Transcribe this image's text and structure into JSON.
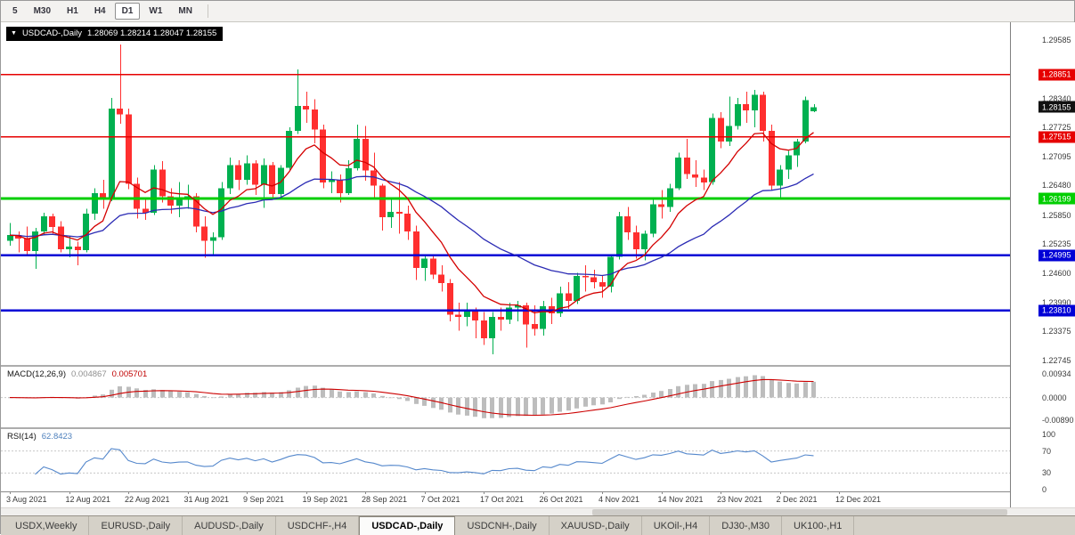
{
  "toolbar": {
    "timeframes": [
      {
        "label": "5",
        "active": false
      },
      {
        "label": "M30",
        "active": false
      },
      {
        "label": "H1",
        "active": false
      },
      {
        "label": "H4",
        "active": false
      },
      {
        "label": "D1",
        "active": true
      },
      {
        "label": "W1",
        "active": false
      },
      {
        "label": "MN",
        "active": false
      }
    ]
  },
  "chart_title": {
    "symbol": "USDCAD-,Daily",
    "ohlc": "1.28069 1.28214 1.28047 1.28155"
  },
  "price_axis": {
    "current": {
      "label": "1.28155",
      "bg": "#111111"
    }
  },
  "macd_panel": {
    "name": "MACD(12,26,9)",
    "value_main": "0.004867",
    "value_signal": "0.005701",
    "axis_labels": [
      "0.00934",
      "0.0000",
      "-0.00890"
    ]
  },
  "rsi_panel": {
    "name": "RSI(14)",
    "value": "62.8423",
    "axis_labels": [
      "100",
      "70",
      "30",
      "0"
    ],
    "guide_levels": [
      70,
      30
    ]
  },
  "date_axis": {
    "labels": [
      "3 Aug 2021",
      "12 Aug 2021",
      "22 Aug 2021",
      "31 Aug 2021",
      "9 Sep 2021",
      "19 Sep 2021",
      "28 Sep 2021",
      "7 Oct 2021",
      "17 Oct 2021",
      "26 Oct 2021",
      "4 Nov 2021",
      "14 Nov 2021",
      "23 Nov 2021",
      "2 Dec 2021",
      "12 Dec 2021"
    ]
  },
  "tabs": [
    {
      "label": "USDX,Weekly",
      "active": false
    },
    {
      "label": "EURUSD-,Daily",
      "active": false
    },
    {
      "label": "AUDUSD-,Daily",
      "active": false
    },
    {
      "label": "USDCHF-,H4",
      "active": false
    },
    {
      "label": "USDCAD-,Daily",
      "active": true
    },
    {
      "label": "USDCNH-,Daily",
      "active": false
    },
    {
      "label": "XAUUSD-,Daily",
      "active": false
    },
    {
      "label": "UKOil-,H4",
      "active": false
    },
    {
      "label": "DJ30-,M30",
      "active": false
    },
    {
      "label": "UK100-,H1",
      "active": false
    }
  ],
  "colors": {
    "candle_up": "#00b050",
    "candle_down": "#ff2f2f",
    "macd_hist": "#bdbdbd",
    "macd_signal": "#cc0000",
    "rsi_line": "#5588cc",
    "guide_dotted": "#c8c8c8"
  },
  "chart_data": {
    "type": "candlestick",
    "symbol": "USDCAD-",
    "timeframe": "Daily",
    "current_ohlc": {
      "open": 1.28069,
      "high": 1.28214,
      "low": 1.28047,
      "close": 1.28155
    },
    "y_ticks": [
      "1.29585",
      "1.28340",
      "1.27725",
      "1.27095",
      "1.26480",
      "1.25850",
      "1.25235",
      "1.24600",
      "1.23990",
      "1.23375",
      "1.22745"
    ],
    "horizontal_levels": [
      {
        "price": 1.28851,
        "label": "1.28851",
        "color": "#e60000",
        "width": 1.6
      },
      {
        "price": 1.27515,
        "label": "1.27515",
        "color": "#e60000",
        "width": 1.6
      },
      {
        "price": 1.26199,
        "label": "1.26199",
        "color": "#00ce00",
        "width": 3
      },
      {
        "price": 1.24995,
        "label": "1.24995",
        "color": "#0000d6",
        "width": 2.6
      },
      {
        "price": 1.2381,
        "label": "1.23810",
        "color": "#0000d6",
        "width": 2.6
      }
    ],
    "overlays": [
      {
        "name": "ma-fast",
        "type": "ema",
        "period": 9,
        "color": "#d40000"
      },
      {
        "name": "ma-slow",
        "type": "ema",
        "period": 30,
        "color": "#2b2bb4"
      }
    ],
    "candles": [
      [
        "2021-08-03",
        1.253,
        1.2568,
        1.252,
        1.2542
      ],
      [
        "2021-08-04",
        1.2542,
        1.255,
        1.2505,
        1.2535
      ],
      [
        "2021-08-05",
        1.2535,
        1.256,
        1.25,
        1.2508
      ],
      [
        "2021-08-06",
        1.2508,
        1.2558,
        1.247,
        1.255
      ],
      [
        "2021-08-09",
        1.255,
        1.259,
        1.2542,
        1.2582
      ],
      [
        "2021-08-10",
        1.2582,
        1.2588,
        1.2545,
        1.256
      ],
      [
        "2021-08-11",
        1.256,
        1.2572,
        1.2505,
        1.2512
      ],
      [
        "2021-08-12",
        1.2512,
        1.254,
        1.2495,
        1.2518
      ],
      [
        "2021-08-13",
        1.2518,
        1.2528,
        1.2478,
        1.251
      ],
      [
        "2021-08-16",
        1.251,
        1.2598,
        1.2505,
        1.2588
      ],
      [
        "2021-08-17",
        1.2588,
        1.2642,
        1.2575,
        1.2632
      ],
      [
        "2021-08-18",
        1.2632,
        1.266,
        1.2598,
        1.262
      ],
      [
        "2021-08-19",
        1.262,
        1.2835,
        1.2615,
        1.2812
      ],
      [
        "2021-08-20",
        1.2812,
        1.2949,
        1.278,
        1.28
      ],
      [
        "2021-08-23",
        1.28,
        1.2812,
        1.264,
        1.2652
      ],
      [
        "2021-08-24",
        1.2652,
        1.2665,
        1.2578,
        1.2598
      ],
      [
        "2021-08-25",
        1.2598,
        1.2622,
        1.2575,
        1.259
      ],
      [
        "2021-08-26",
        1.259,
        1.2692,
        1.2585,
        1.2682
      ],
      [
        "2021-08-27",
        1.2682,
        1.27,
        1.2612,
        1.2625
      ],
      [
        "2021-08-30",
        1.2625,
        1.2642,
        1.2588,
        1.2605
      ],
      [
        "2021-08-31",
        1.2605,
        1.2655,
        1.258,
        1.2622
      ],
      [
        "2021-09-01",
        1.2622,
        1.265,
        1.2598,
        1.2625
      ],
      [
        "2021-09-02",
        1.2625,
        1.2632,
        1.2548,
        1.256
      ],
      [
        "2021-09-03",
        1.256,
        1.2582,
        1.2494,
        1.253
      ],
      [
        "2021-09-06",
        1.253,
        1.2548,
        1.25,
        1.2538
      ],
      [
        "2021-09-07",
        1.2538,
        1.2655,
        1.2532,
        1.2642
      ],
      [
        "2021-09-08",
        1.2642,
        1.2708,
        1.263,
        1.2692
      ],
      [
        "2021-09-09",
        1.2692,
        1.2702,
        1.2638,
        1.266
      ],
      [
        "2021-09-10",
        1.266,
        1.2712,
        1.265,
        1.2695
      ],
      [
        "2021-09-13",
        1.2695,
        1.2702,
        1.2628,
        1.265
      ],
      [
        "2021-09-14",
        1.265,
        1.2706,
        1.26,
        1.2692
      ],
      [
        "2021-09-15",
        1.2692,
        1.2698,
        1.2618,
        1.263
      ],
      [
        "2021-09-16",
        1.263,
        1.2692,
        1.2618,
        1.2686
      ],
      [
        "2021-09-17",
        1.2686,
        1.2772,
        1.268,
        1.2765
      ],
      [
        "2021-09-20",
        1.2765,
        1.2896,
        1.2758,
        1.2818
      ],
      [
        "2021-09-21",
        1.2818,
        1.2848,
        1.2782,
        1.281
      ],
      [
        "2021-09-22",
        1.281,
        1.2832,
        1.2738,
        1.2768
      ],
      [
        "2021-09-23",
        1.2768,
        1.2778,
        1.2642,
        1.2655
      ],
      [
        "2021-09-24",
        1.2655,
        1.2678,
        1.2632,
        1.266
      ],
      [
        "2021-09-27",
        1.266,
        1.2672,
        1.2612,
        1.2632
      ],
      [
        "2021-09-28",
        1.2632,
        1.2702,
        1.2628,
        1.2685
      ],
      [
        "2021-09-29",
        1.2685,
        1.2778,
        1.268,
        1.2748
      ],
      [
        "2021-09-30",
        1.2748,
        1.2775,
        1.2658,
        1.268
      ],
      [
        "2021-10-01",
        1.268,
        1.2718,
        1.2618,
        1.2648
      ],
      [
        "2021-10-04",
        1.2648,
        1.2652,
        1.2552,
        1.258
      ],
      [
        "2021-10-05",
        1.258,
        1.2622,
        1.2558,
        1.2592
      ],
      [
        "2021-10-06",
        1.2592,
        1.2655,
        1.2545,
        1.2588
      ],
      [
        "2021-10-07",
        1.2588,
        1.2605,
        1.2532,
        1.255
      ],
      [
        "2021-10-08",
        1.255,
        1.2562,
        1.2446,
        1.2472
      ],
      [
        "2021-10-11",
        1.2472,
        1.2502,
        1.2445,
        1.2492
      ],
      [
        "2021-10-12",
        1.2492,
        1.2502,
        1.2448,
        1.2458
      ],
      [
        "2021-10-13",
        1.2458,
        1.2478,
        1.2422,
        1.244
      ],
      [
        "2021-10-14",
        1.244,
        1.2448,
        1.2358,
        1.2372
      ],
      [
        "2021-10-15",
        1.2372,
        1.2398,
        1.2338,
        1.2368
      ],
      [
        "2021-10-18",
        1.2368,
        1.2398,
        1.2348,
        1.238
      ],
      [
        "2021-10-19",
        1.238,
        1.2388,
        1.2322,
        1.236
      ],
      [
        "2021-10-20",
        1.236,
        1.2378,
        1.2308,
        1.2322
      ],
      [
        "2021-10-21",
        1.2322,
        1.2378,
        1.2288,
        1.2368
      ],
      [
        "2021-10-22",
        1.2368,
        1.2388,
        1.2338,
        1.2362
      ],
      [
        "2021-10-25",
        1.2362,
        1.2398,
        1.2352,
        1.2388
      ],
      [
        "2021-10-26",
        1.2388,
        1.2402,
        1.2358,
        1.2392
      ],
      [
        "2021-10-27",
        1.2392,
        1.2398,
        1.2302,
        1.2352
      ],
      [
        "2021-10-28",
        1.2352,
        1.2392,
        1.2328,
        1.2342
      ],
      [
        "2021-10-29",
        1.2342,
        1.2402,
        1.2328,
        1.239
      ],
      [
        "2021-11-01",
        1.239,
        1.2408,
        1.2352,
        1.2375
      ],
      [
        "2021-11-02",
        1.2375,
        1.2432,
        1.2368,
        1.2418
      ],
      [
        "2021-11-03",
        1.2418,
        1.2442,
        1.2385,
        1.2402
      ],
      [
        "2021-11-04",
        1.2402,
        1.2462,
        1.2395,
        1.2455
      ],
      [
        "2021-11-05",
        1.2455,
        1.2478,
        1.2422,
        1.2452
      ],
      [
        "2021-11-08",
        1.2452,
        1.2468,
        1.2428,
        1.2442
      ],
      [
        "2021-11-09",
        1.2442,
        1.2455,
        1.2408,
        1.2432
      ],
      [
        "2021-11-10",
        1.2432,
        1.2502,
        1.242,
        1.2496
      ],
      [
        "2021-11-11",
        1.2496,
        1.2592,
        1.249,
        1.2582
      ],
      [
        "2021-11-12",
        1.2582,
        1.2602,
        1.2532,
        1.2548
      ],
      [
        "2021-11-15",
        1.2548,
        1.2562,
        1.2492,
        1.2512
      ],
      [
        "2021-11-16",
        1.2512,
        1.2552,
        1.2488,
        1.2545
      ],
      [
        "2021-11-17",
        1.2545,
        1.2618,
        1.2538,
        1.2608
      ],
      [
        "2021-11-18",
        1.2608,
        1.2638,
        1.2578,
        1.2602
      ],
      [
        "2021-11-19",
        1.2602,
        1.2652,
        1.2592,
        1.2642
      ],
      [
        "2021-11-22",
        1.2642,
        1.2718,
        1.2638,
        1.2708
      ],
      [
        "2021-11-23",
        1.2708,
        1.2748,
        1.2662,
        1.2672
      ],
      [
        "2021-11-24",
        1.2672,
        1.2702,
        1.2645,
        1.2665
      ],
      [
        "2021-11-25",
        1.2665,
        1.2682,
        1.2638,
        1.2655
      ],
      [
        "2021-11-26",
        1.2655,
        1.2802,
        1.265,
        1.2792
      ],
      [
        "2021-11-29",
        1.2792,
        1.2805,
        1.2728,
        1.2742
      ],
      [
        "2021-11-30",
        1.2742,
        1.2838,
        1.2732,
        1.2775
      ],
      [
        "2021-12-01",
        1.2775,
        1.2835,
        1.2768,
        1.2822
      ],
      [
        "2021-12-02",
        1.2822,
        1.2848,
        1.2782,
        1.2808
      ],
      [
        "2021-12-03",
        1.2808,
        1.2852,
        1.2772,
        1.2842
      ],
      [
        "2021-12-06",
        1.2842,
        1.2848,
        1.2742,
        1.2765
      ],
      [
        "2021-12-07",
        1.2765,
        1.2778,
        1.2638,
        1.2648
      ],
      [
        "2021-12-08",
        1.2648,
        1.2692,
        1.2622,
        1.2682
      ],
      [
        "2021-12-09",
        1.2682,
        1.2722,
        1.2662,
        1.2712
      ],
      [
        "2021-12-10",
        1.2712,
        1.2748,
        1.2688,
        1.2742
      ],
      [
        "2021-12-12",
        1.2742,
        1.2838,
        1.2738,
        1.283
      ],
      [
        "2021-12-13",
        1.28069,
        1.28214,
        1.28047,
        1.28155
      ]
    ]
  }
}
